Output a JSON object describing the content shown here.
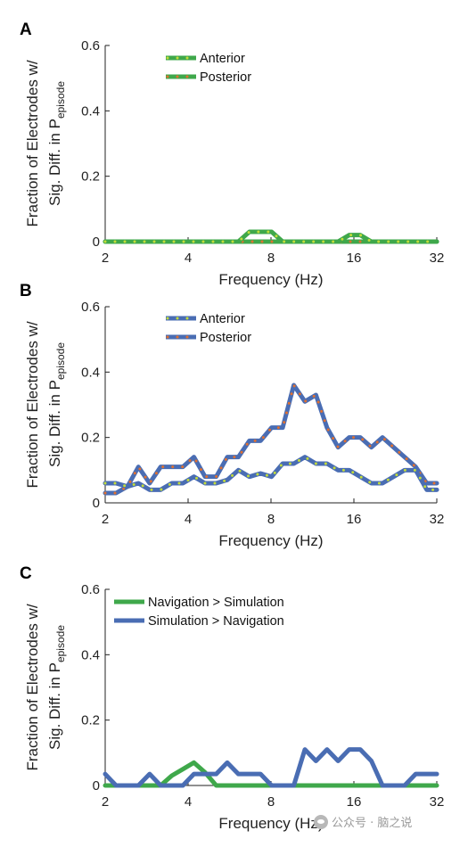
{
  "chart_data": [
    {
      "type": "line",
      "panel_label": "A",
      "ylabel_line1": "Fraction of Electrodes w/",
      "ylabel_line2": "Sig. Diff. in P",
      "ylabel_subscript": "episode",
      "xlabel": "Frequency (Hz)",
      "x_scale": "log2",
      "xlim": [
        2,
        32
      ],
      "ylim": [
        0,
        0.6
      ],
      "xticks": [
        2,
        4,
        8,
        16,
        32
      ],
      "xtick_labels": [
        "2",
        "4",
        "8",
        "16",
        "32"
      ],
      "yticks": [
        0,
        0.2,
        0.4,
        0.6
      ],
      "ytick_labels": [
        "0",
        "0.2",
        "0.4",
        "0.6"
      ],
      "grid": false,
      "legend": "top-left",
      "x": [
        2.0,
        2.19,
        2.41,
        2.64,
        2.9,
        3.18,
        3.49,
        3.83,
        4.2,
        4.61,
        5.06,
        5.55,
        6.09,
        6.68,
        7.33,
        8.04,
        8.82,
        9.68,
        10.62,
        11.65,
        12.78,
        14.02,
        15.38,
        16.88,
        18.52,
        20.32,
        22.29,
        24.45,
        26.82,
        29.42,
        32.0
      ],
      "series": [
        {
          "name": "Anterior",
          "color": "#3fa84b",
          "dot_color": "#c3dc3a",
          "values": [
            0,
            0,
            0,
            0,
            0,
            0,
            0,
            0,
            0,
            0,
            0,
            0,
            0,
            0.03,
            0.03,
            0.03,
            0,
            0,
            0,
            0,
            0,
            0,
            0.02,
            0.02,
            0,
            0,
            0,
            0,
            0,
            0,
            0
          ]
        },
        {
          "name": "Posterior",
          "color": "#3fa84b",
          "dot_color": "#e07030",
          "values": [
            0,
            0,
            0,
            0,
            0,
            0,
            0,
            0,
            0,
            0,
            0,
            0,
            0,
            0,
            0,
            0,
            0,
            0,
            0,
            0,
            0,
            0,
            0,
            0,
            0,
            0,
            0,
            0,
            0,
            0,
            0
          ]
        }
      ]
    },
    {
      "type": "line",
      "panel_label": "B",
      "ylabel_line1": "Fraction of Electrodes w/",
      "ylabel_line2": "Sig. Diff. in P",
      "ylabel_subscript": "episode",
      "xlabel": "Frequency (Hz)",
      "x_scale": "log2",
      "xlim": [
        2,
        32
      ],
      "ylim": [
        0,
        0.6
      ],
      "xticks": [
        2,
        4,
        8,
        16,
        32
      ],
      "xtick_labels": [
        "2",
        "4",
        "8",
        "16",
        "32"
      ],
      "yticks": [
        0,
        0.2,
        0.4,
        0.6
      ],
      "ytick_labels": [
        "0",
        "0.2",
        "0.4",
        "0.6"
      ],
      "grid": false,
      "legend": "top-left",
      "x": [
        2.0,
        2.19,
        2.41,
        2.64,
        2.9,
        3.18,
        3.49,
        3.83,
        4.2,
        4.61,
        5.06,
        5.55,
        6.09,
        6.68,
        7.33,
        8.04,
        8.82,
        9.68,
        10.62,
        11.65,
        12.78,
        14.02,
        15.38,
        16.88,
        18.52,
        20.32,
        22.29,
        24.45,
        26.82,
        29.42,
        32.0
      ],
      "series": [
        {
          "name": "Anterior",
          "color": "#4a6db3",
          "dot_color": "#c3dc3a",
          "values": [
            0.06,
            0.06,
            0.05,
            0.06,
            0.04,
            0.04,
            0.06,
            0.06,
            0.08,
            0.06,
            0.06,
            0.07,
            0.1,
            0.08,
            0.09,
            0.08,
            0.12,
            0.12,
            0.14,
            0.12,
            0.12,
            0.1,
            0.1,
            0.08,
            0.06,
            0.06,
            0.08,
            0.1,
            0.1,
            0.04,
            0.04
          ]
        },
        {
          "name": "Posterior",
          "color": "#4a6db3",
          "dot_color": "#e07030",
          "values": [
            0.03,
            0.03,
            0.05,
            0.11,
            0.06,
            0.11,
            0.11,
            0.11,
            0.14,
            0.08,
            0.08,
            0.14,
            0.14,
            0.19,
            0.19,
            0.23,
            0.23,
            0.36,
            0.31,
            0.33,
            0.23,
            0.17,
            0.2,
            0.2,
            0.17,
            0.2,
            0.17,
            0.14,
            0.11,
            0.06,
            0.06
          ]
        }
      ]
    },
    {
      "type": "line",
      "panel_label": "C",
      "ylabel_line1": "Fraction of Electrodes w/",
      "ylabel_line2": "Sig. Diff. in P",
      "ylabel_subscript": "episode",
      "xlabel": "Frequency (Hz)",
      "x_scale": "log2",
      "xlim": [
        2,
        32
      ],
      "ylim": [
        0,
        0.6
      ],
      "xticks": [
        2,
        4,
        8,
        16,
        32
      ],
      "xtick_labels": [
        "2",
        "4",
        "8",
        "16",
        "32"
      ],
      "yticks": [
        0,
        0.2,
        0.4,
        0.6
      ],
      "ytick_labels": [
        "0",
        "0.2",
        "0.4",
        "0.6"
      ],
      "grid": false,
      "legend": "top-left",
      "x": [
        2.0,
        2.19,
        2.41,
        2.64,
        2.9,
        3.18,
        3.49,
        3.83,
        4.2,
        4.61,
        5.06,
        5.55,
        6.09,
        6.68,
        7.33,
        8.04,
        8.82,
        9.68,
        10.62,
        11.65,
        12.78,
        14.02,
        15.38,
        16.88,
        18.52,
        20.32,
        22.29,
        24.45,
        26.82,
        29.42,
        32.0
      ],
      "series": [
        {
          "name": "Navigation > Simulation",
          "color": "#3fa84b",
          "values": [
            0,
            0,
            0,
            0,
            0,
            0,
            0.03,
            0.05,
            0.07,
            0.04,
            0,
            0,
            0,
            0,
            0,
            0,
            0,
            0,
            0,
            0,
            0,
            0,
            0,
            0,
            0,
            0,
            0,
            0,
            0,
            0,
            0
          ]
        },
        {
          "name": "Simulation > Navigation",
          "color": "#4a6db3",
          "values": [
            0.035,
            0,
            0,
            0,
            0.035,
            0,
            0,
            0,
            0.035,
            0.035,
            0.035,
            0.07,
            0.035,
            0.035,
            0.035,
            0,
            0,
            0,
            0.11,
            0.075,
            0.11,
            0.075,
            0.11,
            0.11,
            0.075,
            0,
            0,
            0,
            0.035,
            0.035,
            0.035
          ]
        }
      ]
    }
  ],
  "watermark": {
    "text": "公众号 · 脑之说",
    "icon": "wechat-icon"
  }
}
